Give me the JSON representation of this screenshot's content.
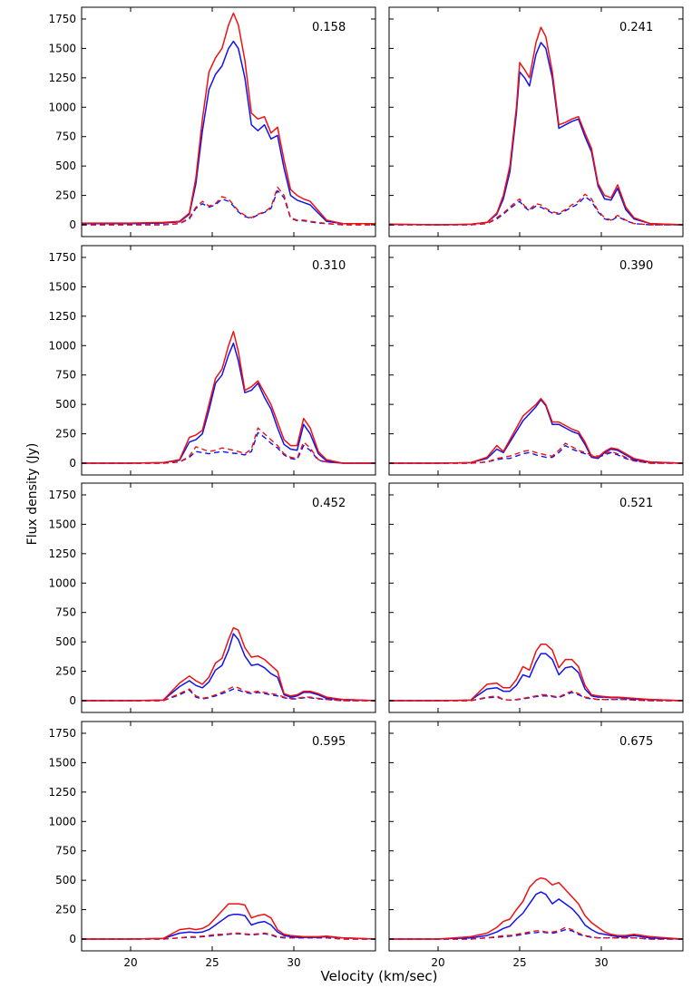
{
  "figure": {
    "ylabel": "Flux density  (Jy)",
    "xlabel": "Velocity  (km/sec)"
  },
  "colors": {
    "red": "#ee1111",
    "blue": "#1111ee",
    "axis": "#000000"
  },
  "chart_data": {
    "type": "line",
    "layout": "4x2 grid of panels, shared axes",
    "xlim": [
      17,
      35
    ],
    "ylim": [
      -100,
      1850
    ],
    "xticks": [
      20,
      25,
      30
    ],
    "yticks": [
      0,
      250,
      500,
      750,
      1000,
      1250,
      1500,
      1750
    ],
    "series_legend": {
      "red_solid": "red solid",
      "blue_solid": "blue solid",
      "red_dashed": "red dashed",
      "blue_dashed": "blue dashed"
    },
    "panels": [
      {
        "label": "0.158",
        "x": [
          17,
          20,
          22,
          23,
          23.6,
          24,
          24.4,
          24.8,
          25.2,
          25.6,
          26,
          26.3,
          26.6,
          27,
          27.4,
          27.8,
          28.2,
          28.6,
          29,
          29.4,
          29.8,
          30.2,
          30.6,
          31,
          31.5,
          32,
          33,
          35
        ],
        "red_solid": [
          15,
          15,
          20,
          30,
          100,
          400,
          900,
          1300,
          1420,
          1500,
          1700,
          1800,
          1700,
          1400,
          950,
          900,
          920,
          780,
          830,
          550,
          300,
          250,
          220,
          200,
          120,
          40,
          10,
          10
        ],
        "blue_solid": [
          10,
          10,
          15,
          25,
          90,
          350,
          800,
          1150,
          1280,
          1350,
          1500,
          1560,
          1500,
          1250,
          850,
          800,
          850,
          730,
          760,
          480,
          250,
          210,
          190,
          170,
          100,
          30,
          10,
          10
        ],
        "red_dashed": [
          0,
          0,
          0,
          10,
          60,
          150,
          200,
          160,
          180,
          240,
          220,
          170,
          120,
          80,
          60,
          90,
          110,
          150,
          320,
          250,
          60,
          40,
          40,
          30,
          20,
          10,
          0,
          0
        ],
        "blue_dashed": [
          0,
          0,
          0,
          10,
          50,
          140,
          180,
          150,
          170,
          220,
          200,
          160,
          110,
          70,
          55,
          85,
          105,
          140,
          290,
          230,
          55,
          35,
          35,
          25,
          15,
          10,
          0,
          0
        ]
      },
      {
        "label": "0.241",
        "x": [
          17,
          20,
          22,
          23,
          23.6,
          24,
          24.4,
          24.8,
          25,
          25.3,
          25.6,
          26,
          26.3,
          26.6,
          27,
          27.4,
          27.8,
          28.2,
          28.6,
          29,
          29.4,
          29.8,
          30.2,
          30.6,
          31,
          31.5,
          32,
          33,
          35
        ],
        "red_solid": [
          5,
          0,
          5,
          20,
          100,
          250,
          500,
          1000,
          1380,
          1320,
          1250,
          1550,
          1680,
          1600,
          1300,
          850,
          870,
          900,
          920,
          780,
          650,
          350,
          250,
          230,
          340,
          150,
          60,
          10,
          0
        ],
        "blue_solid": [
          5,
          0,
          5,
          20,
          90,
          220,
          450,
          950,
          1300,
          1250,
          1180,
          1450,
          1550,
          1500,
          1250,
          820,
          850,
          880,
          900,
          750,
          620,
          330,
          220,
          210,
          310,
          130,
          50,
          10,
          0
        ],
        "red_dashed": [
          0,
          0,
          0,
          10,
          60,
          100,
          150,
          200,
          220,
          160,
          130,
          180,
          170,
          140,
          110,
          100,
          130,
          170,
          200,
          260,
          220,
          120,
          60,
          40,
          80,
          40,
          10,
          0,
          0
        ],
        "blue_dashed": [
          0,
          0,
          0,
          10,
          50,
          90,
          140,
          180,
          200,
          150,
          120,
          160,
          150,
          130,
          100,
          90,
          120,
          150,
          180,
          240,
          200,
          110,
          50,
          35,
          70,
          35,
          10,
          0,
          0
        ]
      },
      {
        "label": "0.310",
        "x": [
          17,
          20,
          22,
          23,
          23.6,
          24,
          24.4,
          24.8,
          25.2,
          25.6,
          26,
          26.3,
          26.6,
          27,
          27.4,
          27.8,
          28.2,
          28.6,
          29,
          29.4,
          29.8,
          30.2,
          30.6,
          31,
          31.5,
          32,
          33,
          35
        ],
        "red_solid": [
          0,
          0,
          5,
          30,
          220,
          240,
          280,
          500,
          720,
          800,
          1000,
          1120,
          950,
          620,
          650,
          700,
          600,
          500,
          350,
          200,
          150,
          150,
          380,
          300,
          100,
          30,
          0,
          0
        ],
        "blue_solid": [
          0,
          0,
          5,
          25,
          180,
          200,
          250,
          450,
          680,
          750,
          920,
          1020,
          870,
          600,
          620,
          680,
          560,
          460,
          300,
          160,
          120,
          110,
          330,
          250,
          80,
          20,
          0,
          0
        ],
        "red_dashed": [
          0,
          0,
          0,
          10,
          60,
          140,
          120,
          100,
          110,
          130,
          120,
          110,
          100,
          80,
          120,
          300,
          250,
          200,
          150,
          80,
          50,
          40,
          180,
          130,
          30,
          10,
          0,
          0
        ],
        "blue_dashed": [
          0,
          0,
          0,
          10,
          50,
          100,
          90,
          80,
          90,
          100,
          90,
          85,
          80,
          70,
          100,
          260,
          220,
          170,
          130,
          70,
          40,
          30,
          150,
          110,
          25,
          10,
          0,
          0
        ]
      },
      {
        "label": "0.390",
        "x": [
          17,
          20,
          22,
          23,
          23.6,
          24,
          24.4,
          24.8,
          25.2,
          25.6,
          26,
          26.3,
          26.6,
          27,
          27.4,
          27.8,
          28.2,
          28.6,
          29,
          29.4,
          29.8,
          30.2,
          30.6,
          31,
          31.5,
          32,
          33,
          35
        ],
        "red_solid": [
          0,
          0,
          5,
          50,
          150,
          100,
          200,
          300,
          400,
          450,
          500,
          550,
          500,
          350,
          350,
          320,
          290,
          270,
          180,
          60,
          50,
          100,
          130,
          120,
          80,
          40,
          10,
          0
        ],
        "blue_solid": [
          0,
          0,
          5,
          40,
          120,
          90,
          180,
          270,
          360,
          420,
          480,
          540,
          490,
          330,
          330,
          300,
          270,
          250,
          160,
          50,
          40,
          90,
          120,
          110,
          70,
          30,
          10,
          0
        ],
        "red_dashed": [
          0,
          0,
          0,
          10,
          40,
          50,
          60,
          80,
          100,
          110,
          90,
          80,
          70,
          60,
          110,
          170,
          140,
          110,
          90,
          70,
          60,
          80,
          100,
          80,
          50,
          20,
          0,
          0
        ],
        "blue_dashed": [
          0,
          0,
          0,
          10,
          30,
          40,
          40,
          60,
          80,
          90,
          70,
          60,
          50,
          50,
          90,
          150,
          120,
          100,
          80,
          60,
          50,
          70,
          90,
          70,
          40,
          20,
          0,
          0
        ]
      },
      {
        "label": "0.452",
        "x": [
          17,
          20,
          22,
          23,
          23.6,
          24,
          24.4,
          24.8,
          25.2,
          25.6,
          26,
          26.3,
          26.6,
          27,
          27.4,
          27.8,
          28.2,
          28.6,
          29,
          29.4,
          29.8,
          30.2,
          30.6,
          31,
          31.5,
          32,
          33,
          35
        ],
        "red_solid": [
          0,
          0,
          5,
          150,
          210,
          170,
          140,
          200,
          320,
          360,
          520,
          620,
          600,
          450,
          370,
          380,
          350,
          300,
          250,
          60,
          40,
          50,
          80,
          80,
          60,
          30,
          10,
          0
        ],
        "blue_solid": [
          0,
          0,
          5,
          120,
          170,
          130,
          110,
          160,
          260,
          300,
          430,
          570,
          520,
          380,
          300,
          310,
          280,
          230,
          200,
          50,
          30,
          40,
          70,
          70,
          50,
          20,
          10,
          0
        ],
        "red_dashed": [
          0,
          0,
          0,
          60,
          100,
          40,
          20,
          30,
          50,
          70,
          100,
          120,
          110,
          80,
          70,
          80,
          70,
          60,
          50,
          30,
          20,
          20,
          30,
          30,
          20,
          10,
          0,
          0
        ],
        "blue_dashed": [
          0,
          0,
          0,
          50,
          90,
          30,
          15,
          25,
          40,
          60,
          80,
          100,
          90,
          70,
          60,
          70,
          60,
          50,
          40,
          25,
          15,
          15,
          25,
          25,
          15,
          10,
          0,
          0
        ]
      },
      {
        "label": "0.521",
        "x": [
          17,
          20,
          22,
          23,
          23.6,
          24,
          24.4,
          24.8,
          25.2,
          25.6,
          26,
          26.3,
          26.6,
          27,
          27.4,
          27.8,
          28.2,
          28.6,
          29,
          29.4,
          29.8,
          30.2,
          30.6,
          31,
          31.5,
          32,
          33,
          35
        ],
        "red_solid": [
          0,
          0,
          5,
          140,
          150,
          110,
          110,
          180,
          290,
          260,
          420,
          480,
          480,
          430,
          280,
          350,
          350,
          290,
          130,
          50,
          40,
          35,
          30,
          30,
          25,
          20,
          10,
          0
        ],
        "blue_solid": [
          0,
          0,
          5,
          100,
          110,
          80,
          80,
          130,
          220,
          200,
          330,
          400,
          400,
          350,
          220,
          280,
          290,
          240,
          100,
          40,
          30,
          30,
          25,
          25,
          20,
          15,
          10,
          0
        ],
        "red_dashed": [
          0,
          0,
          0,
          30,
          40,
          10,
          5,
          10,
          20,
          30,
          40,
          50,
          50,
          40,
          30,
          60,
          80,
          60,
          30,
          20,
          10,
          10,
          10,
          10,
          10,
          5,
          0,
          0
        ],
        "blue_dashed": [
          0,
          0,
          0,
          25,
          30,
          10,
          5,
          8,
          15,
          25,
          35,
          40,
          40,
          35,
          25,
          50,
          70,
          50,
          25,
          15,
          10,
          10,
          10,
          10,
          10,
          5,
          0,
          0
        ]
      },
      {
        "label": "0.595",
        "x": [
          17,
          20,
          22,
          23,
          23.6,
          24,
          24.4,
          24.8,
          25.2,
          25.6,
          26,
          26.3,
          26.6,
          27,
          27.4,
          27.8,
          28.2,
          28.6,
          29,
          29.4,
          29.8,
          30.2,
          30.6,
          31,
          31.5,
          32,
          33,
          35
        ],
        "red_solid": [
          0,
          0,
          5,
          80,
          90,
          80,
          90,
          120,
          180,
          240,
          300,
          300,
          300,
          290,
          180,
          200,
          210,
          180,
          80,
          40,
          30,
          25,
          20,
          20,
          20,
          25,
          10,
          0
        ],
        "blue_solid": [
          0,
          0,
          5,
          50,
          60,
          55,
          60,
          80,
          120,
          160,
          200,
          210,
          210,
          200,
          120,
          140,
          150,
          120,
          60,
          30,
          20,
          15,
          15,
          15,
          15,
          20,
          10,
          0
        ],
        "red_dashed": [
          0,
          0,
          0,
          10,
          20,
          20,
          25,
          30,
          40,
          40,
          45,
          50,
          50,
          45,
          40,
          45,
          50,
          40,
          20,
          15,
          10,
          10,
          10,
          10,
          10,
          10,
          0,
          0
        ],
        "blue_dashed": [
          0,
          0,
          0,
          10,
          15,
          15,
          20,
          25,
          30,
          35,
          40,
          45,
          45,
          40,
          35,
          40,
          45,
          35,
          15,
          10,
          10,
          10,
          10,
          10,
          10,
          10,
          0,
          0
        ]
      },
      {
        "label": "0.675",
        "x": [
          17,
          20,
          22,
          23,
          23.6,
          24,
          24.4,
          24.8,
          25.2,
          25.6,
          26,
          26.3,
          26.6,
          27,
          27.4,
          27.8,
          28.2,
          28.6,
          29,
          29.4,
          29.8,
          30.2,
          30.6,
          31,
          31.5,
          32,
          33,
          35
        ],
        "red_solid": [
          0,
          0,
          20,
          50,
          100,
          150,
          170,
          250,
          320,
          440,
          500,
          520,
          510,
          460,
          480,
          420,
          360,
          300,
          200,
          140,
          100,
          60,
          40,
          30,
          30,
          40,
          20,
          0
        ],
        "blue_solid": [
          0,
          0,
          10,
          30,
          60,
          90,
          110,
          170,
          220,
          300,
          380,
          400,
          380,
          300,
          340,
          300,
          260,
          200,
          120,
          80,
          50,
          40,
          30,
          20,
          20,
          30,
          10,
          0
        ],
        "red_dashed": [
          0,
          0,
          0,
          10,
          20,
          30,
          30,
          40,
          50,
          60,
          70,
          70,
          60,
          60,
          70,
          100,
          80,
          50,
          30,
          20,
          10,
          10,
          10,
          10,
          10,
          10,
          0,
          0
        ],
        "blue_dashed": [
          0,
          0,
          0,
          10,
          15,
          20,
          25,
          30,
          40,
          50,
          55,
          60,
          55,
          50,
          60,
          80,
          70,
          40,
          25,
          15,
          10,
          10,
          10,
          10,
          10,
          10,
          0,
          0
        ]
      }
    ]
  }
}
